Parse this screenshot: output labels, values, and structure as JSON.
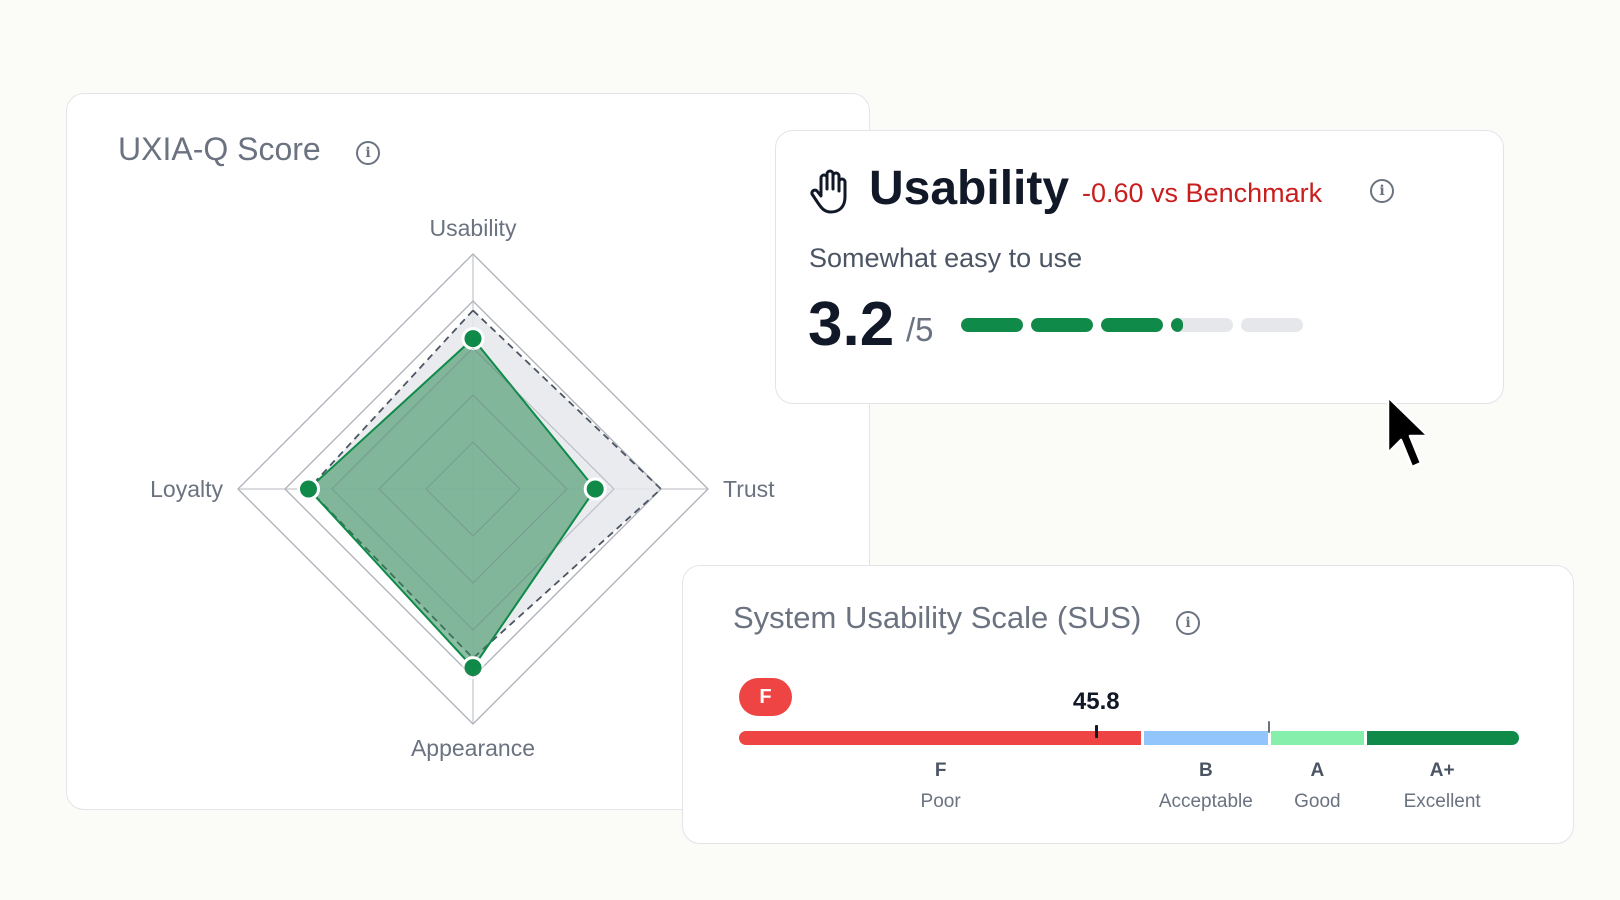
{
  "radar": {
    "title": "UXIA-Q Score",
    "info_icon": "info-icon",
    "max": 5,
    "axes": [
      "Usability",
      "Trust",
      "Appearance",
      "Loyalty"
    ],
    "scores": [
      3.2,
      2.6,
      3.8,
      3.5
    ],
    "benchmark": [
      3.8,
      4.0,
      3.6,
      3.5
    ],
    "colors": {
      "score": "#0f8a48",
      "score_fill": "#2e8b57",
      "benchmark_fill": "#e5e7eb",
      "grid": "#cfd1d6"
    }
  },
  "usability": {
    "icon": "hand-icon",
    "title": "Usability",
    "delta": "-0.60 vs Benchmark",
    "description": "Somewhat easy to use",
    "score": "3.2",
    "max": "/5",
    "score_value": 3.2,
    "segments": 5,
    "colors": {
      "fill": "#0f8a48",
      "track": "#e5e7eb",
      "delta": "#c81e1e"
    }
  },
  "sus": {
    "title": "System Usability Scale (SUS)",
    "grade": "F",
    "score": "45.8",
    "score_value": 45.8,
    "scale_min": 0,
    "scale_max": 100,
    "zones": [
      {
        "grade": "F",
        "label": "Poor",
        "from": 0,
        "to": 51.7,
        "color": "#ef4444"
      },
      {
        "grade": "B",
        "label": "Acceptable",
        "from": 51.7,
        "to": 68,
        "color": "#93c5fd"
      },
      {
        "grade": "A",
        "label": "Good",
        "from": 68,
        "to": 80.3,
        "color": "#86efac"
      },
      {
        "grade": "A+",
        "label": "Excellent",
        "from": 80.3,
        "to": 100,
        "color": "#0f8a48"
      }
    ],
    "benchmark_value": 68
  },
  "cursor": "cursor-arrow-icon"
}
